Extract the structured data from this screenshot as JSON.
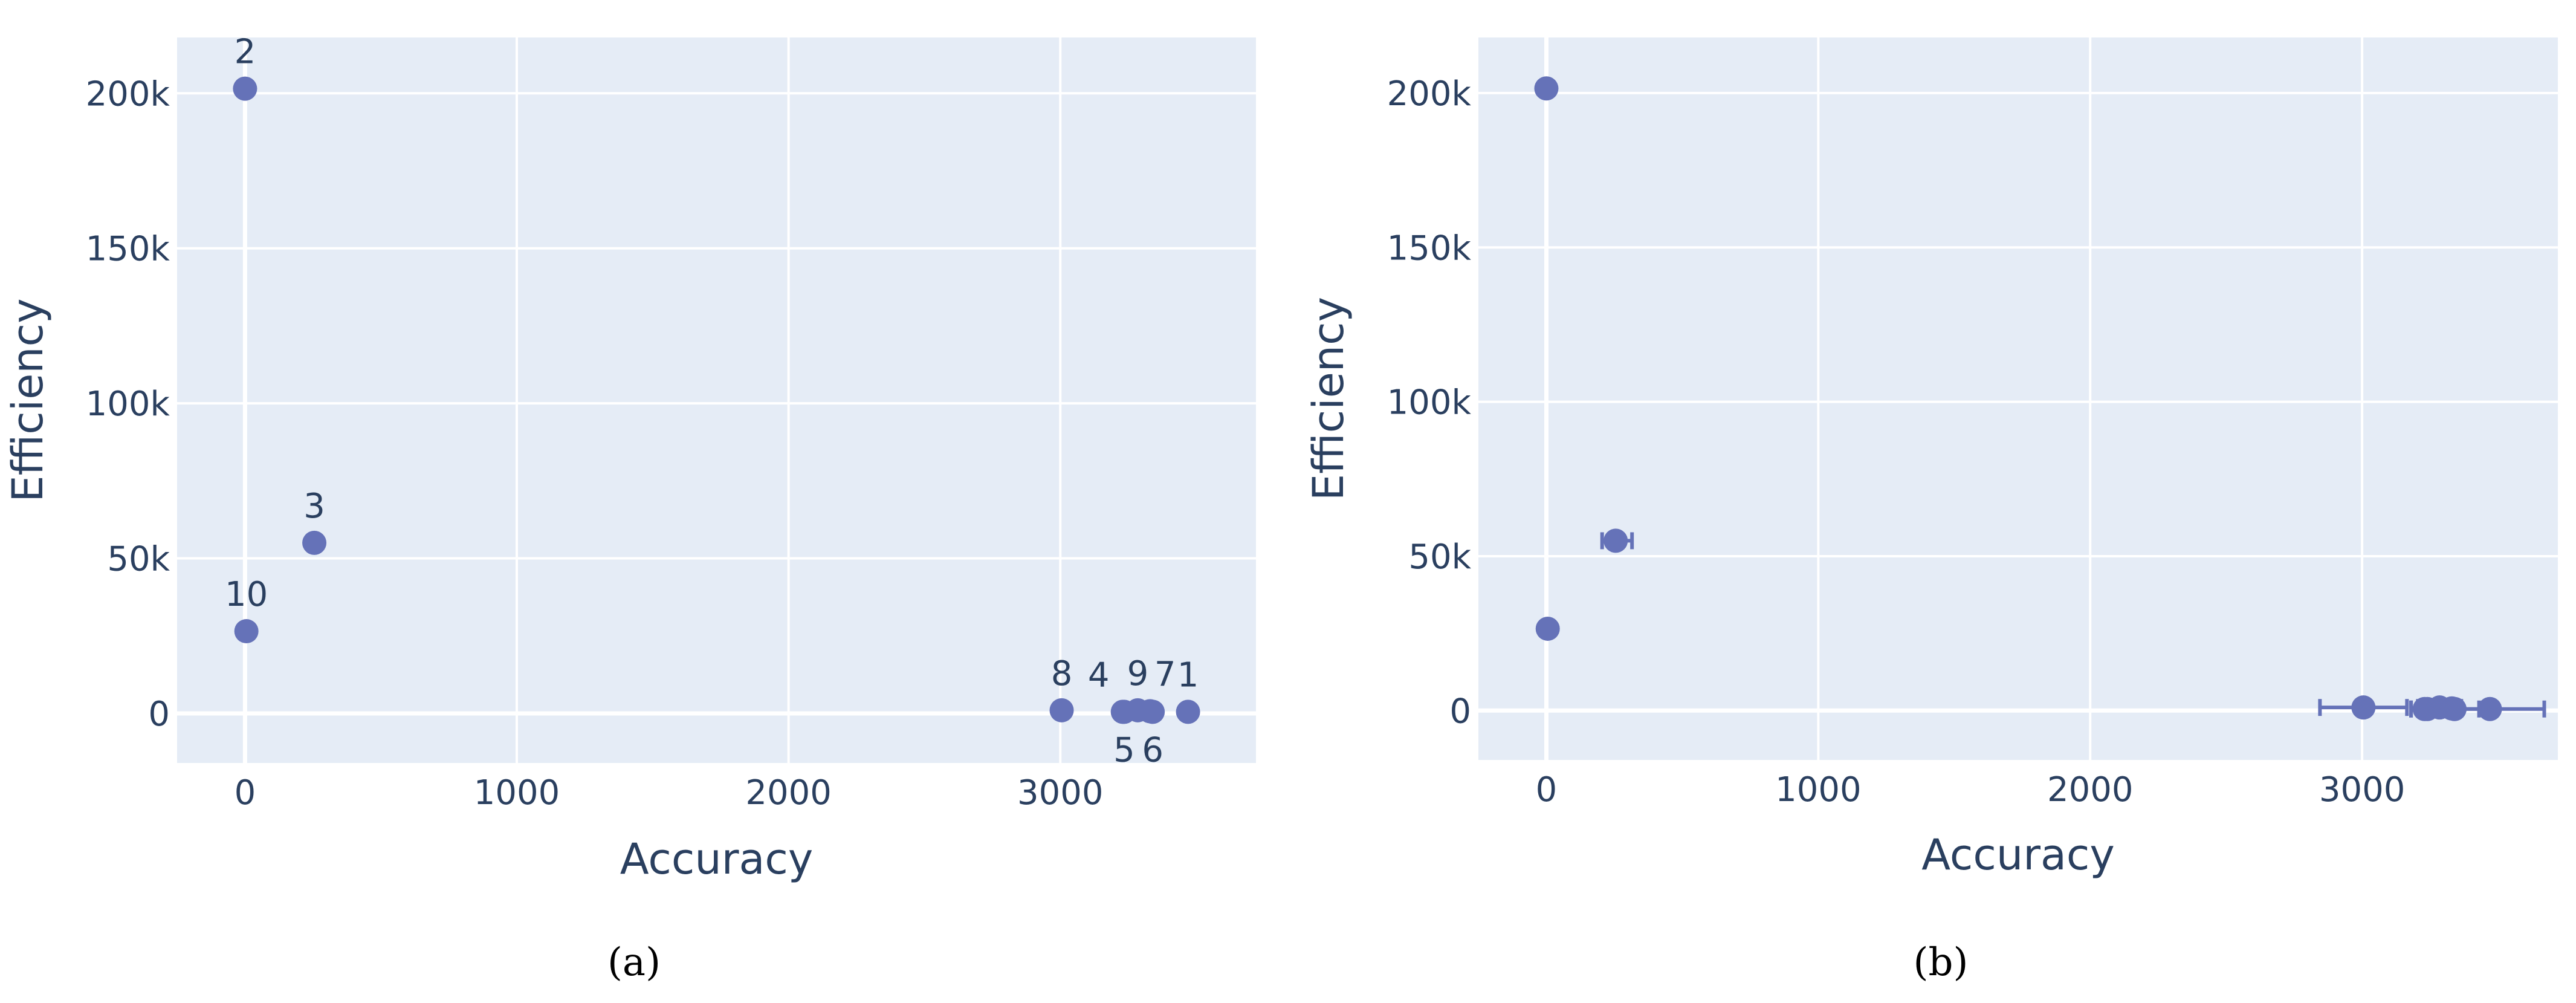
{
  "colors": {
    "plot_bg": "#e5ecf6",
    "grid": "#ffffff",
    "marker": "#636efa",
    "marker_inner": "#6572b8",
    "text": "#2a3f5f"
  },
  "panels": [
    {
      "caption": "(a)"
    },
    {
      "caption": "(b)"
    }
  ],
  "chart_data": [
    {
      "type": "scatter",
      "title": "",
      "xlabel": "Accuracy",
      "ylabel": "Efficiency",
      "xlim": [
        -250,
        3720
      ],
      "ylim": [
        -16000,
        218000
      ],
      "xticks": [
        0,
        1000,
        2000,
        3000
      ],
      "xtick_labels": [
        "0",
        "1000",
        "2000",
        "3000"
      ],
      "yticks": [
        0,
        50000,
        100000,
        150000,
        200000
      ],
      "ytick_labels": [
        "0",
        "50k",
        "100k",
        "150k",
        "200k"
      ],
      "grid": true,
      "legend": "none",
      "points": [
        {
          "label": "1",
          "x": 3470,
          "y": 500,
          "label_pos": "top"
        },
        {
          "label": "2",
          "x": 0,
          "y": 201500,
          "label_pos": "top"
        },
        {
          "label": "3",
          "x": 255,
          "y": 55000,
          "label_pos": "top"
        },
        {
          "label": "4",
          "x": 3230,
          "y": 500,
          "label_pos": "top-left"
        },
        {
          "label": "5",
          "x": 3235,
          "y": 500,
          "label_pos": "bottom"
        },
        {
          "label": "6",
          "x": 3340,
          "y": 500,
          "label_pos": "bottom"
        },
        {
          "label": "7",
          "x": 3330,
          "y": 700,
          "label_pos": "top-right"
        },
        {
          "label": "8",
          "x": 3005,
          "y": 1000,
          "label_pos": "top"
        },
        {
          "label": "9",
          "x": 3285,
          "y": 1000,
          "label_pos": "top"
        },
        {
          "label": "10",
          "x": 5,
          "y": 26500,
          "label_pos": "top"
        }
      ]
    },
    {
      "type": "scatter",
      "title": "",
      "xlabel": "Accuracy",
      "ylabel": "Efficiency",
      "xlim": [
        -250,
        3720
      ],
      "ylim": [
        -16000,
        218000
      ],
      "xticks": [
        0,
        1000,
        2000,
        3000
      ],
      "xtick_labels": [
        "0",
        "1000",
        "2000",
        "3000"
      ],
      "yticks": [
        0,
        50000,
        100000,
        150000,
        200000
      ],
      "ytick_labels": [
        "0",
        "50k",
        "100k",
        "150k",
        "200k"
      ],
      "grid": true,
      "legend": "none",
      "points": [
        {
          "x": 3470,
          "y": 500,
          "x_err_minus": 120,
          "x_err_plus": 200
        },
        {
          "x": 0,
          "y": 201500
        },
        {
          "x": 255,
          "y": 55000,
          "x_err_minus": 50,
          "x_err_plus": 60
        },
        {
          "x": 3230,
          "y": 500,
          "x_err_minus": 50,
          "x_err_plus": 70
        },
        {
          "x": 3240,
          "y": 500,
          "x_err_minus": 60,
          "x_err_plus": 60
        },
        {
          "x": 3340,
          "y": 500,
          "x_err_minus": 80,
          "x_err_plus": 90
        },
        {
          "x": 3330,
          "y": 700
        },
        {
          "x": 3005,
          "y": 1000,
          "x_err_minus": 160,
          "x_err_plus": 160
        },
        {
          "x": 3285,
          "y": 1000,
          "x_err_minus": 80,
          "x_err_plus": 80
        },
        {
          "x": 5,
          "y": 26500
        }
      ]
    }
  ]
}
